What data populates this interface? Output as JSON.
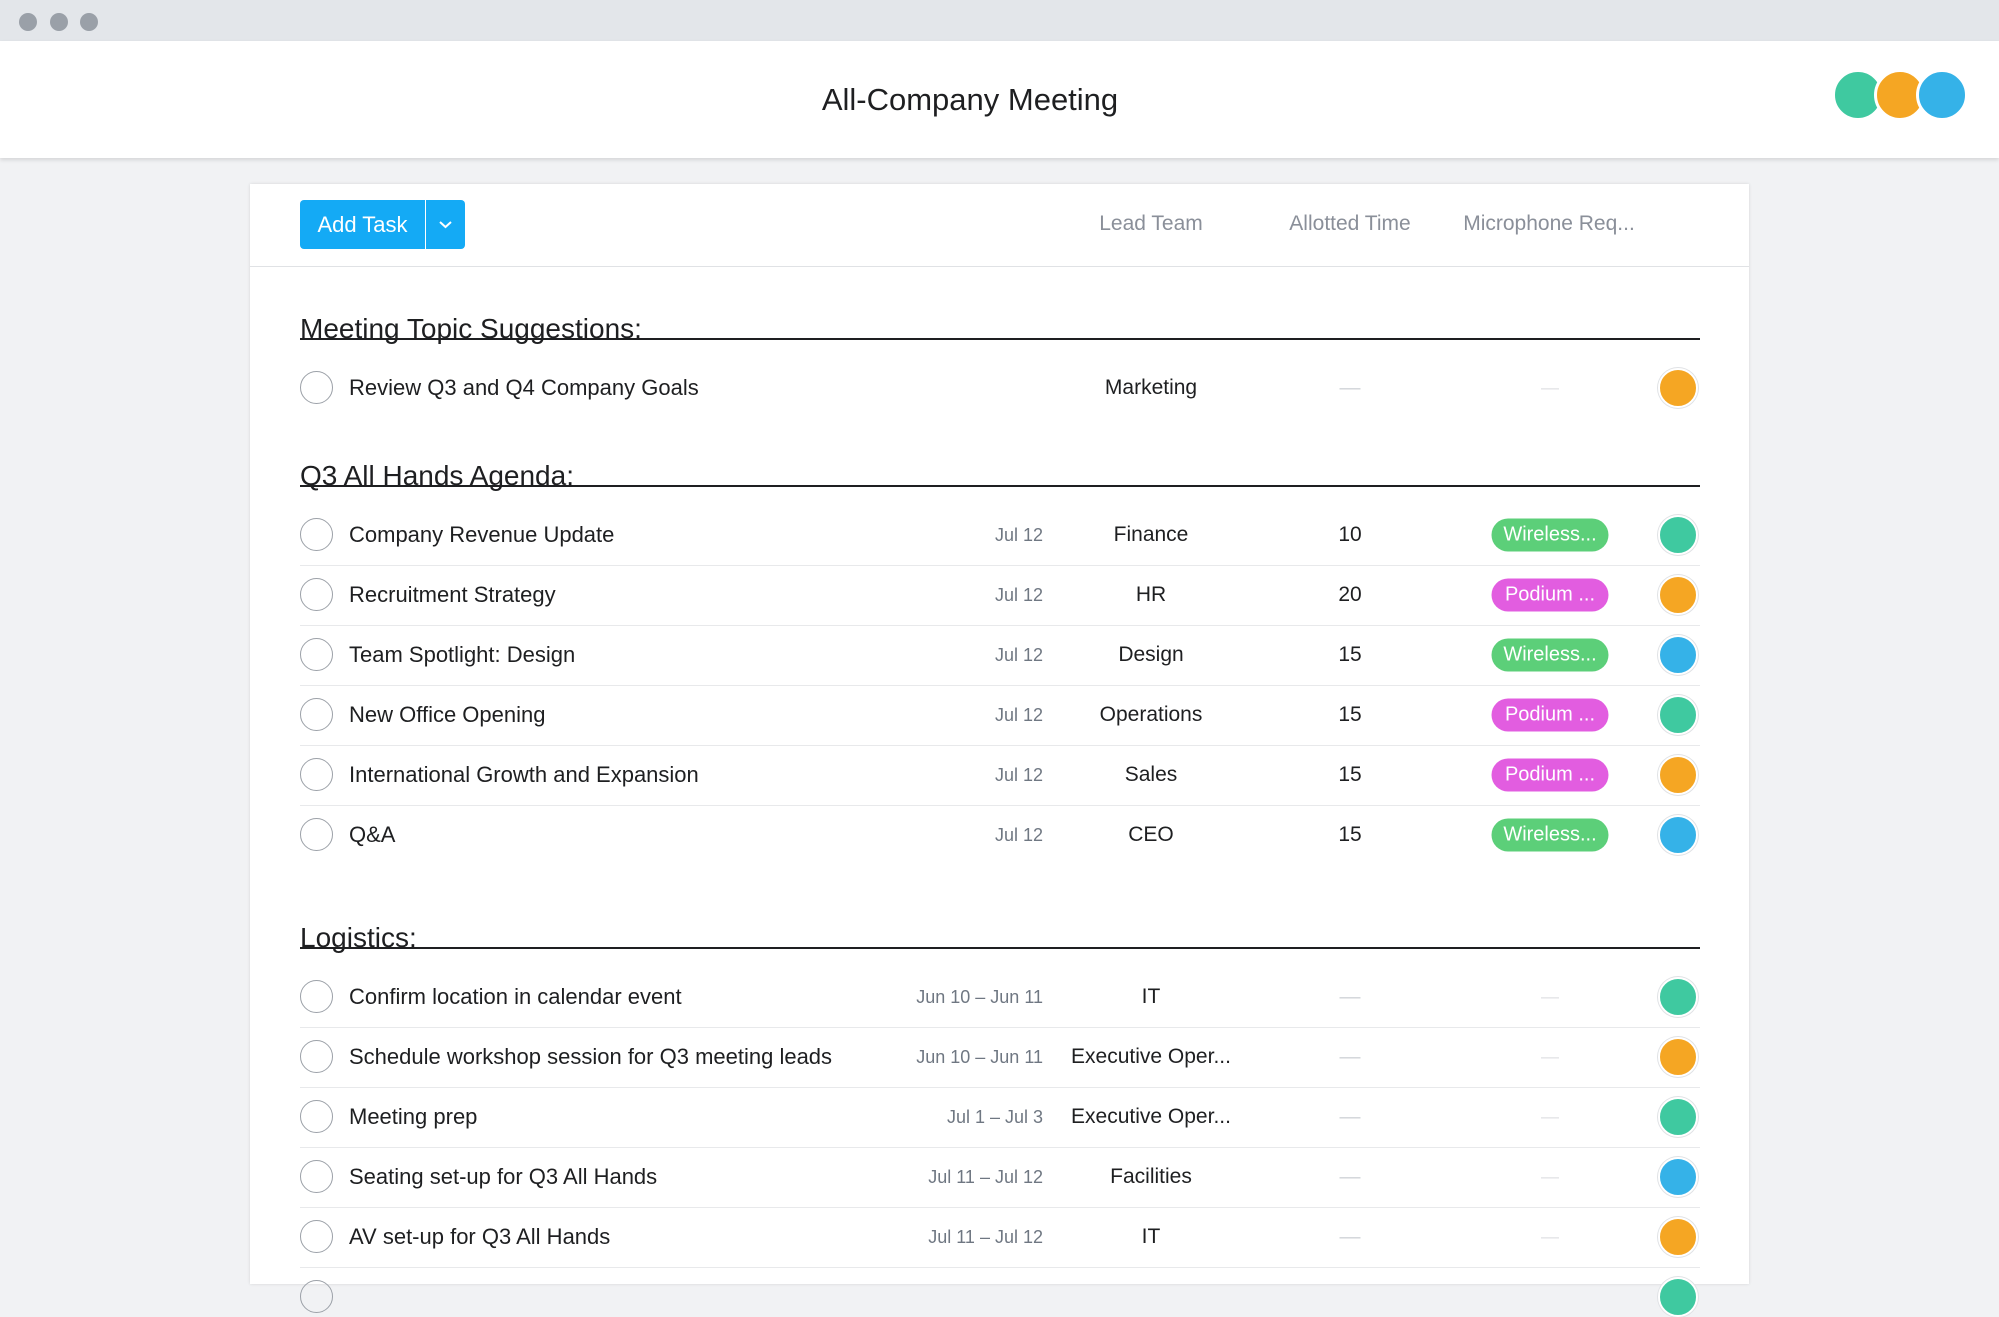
{
  "window": {
    "title": "All-Company Meeting"
  },
  "toolbar": {
    "button": "Add Task",
    "columns": [
      "Lead Team",
      "Allotted Time",
      "Microphone Req..."
    ]
  },
  "sections": [
    {
      "title": "Meeting Topic Suggestions:",
      "rows": [
        {
          "name": "Review Q3 and Q4 Company Goals",
          "team": "Marketing",
          "time": "—",
          "mic": "—",
          "avatar_color": "#f5a623"
        }
      ]
    },
    {
      "title": "Q3 All Hands Agenda:",
      "rows": [
        {
          "name": "Company Revenue Update",
          "date": "Jul 12",
          "team": "Finance",
          "time": 10,
          "mic": "Wireless...",
          "mic_color": "#5ccf79",
          "avatar_color": "#3fc9a0"
        },
        {
          "name": "Recruitment Strategy",
          "date": "Jul 12",
          "team": "HR",
          "time": 20,
          "mic": "Podium ...",
          "mic_color": "#e25de0",
          "avatar_color": "#f5a623"
        },
        {
          "name": "Team Spotlight: Design",
          "date": "Jul 12",
          "team": "Design",
          "time": 15,
          "mic": "Wireless...",
          "mic_color": "#5ccf79",
          "avatar_color": "#35b2e8"
        },
        {
          "name": "New Office Opening",
          "date": "Jul 12",
          "team": "Operations",
          "time": 15,
          "mic": "Podium ...",
          "mic_color": "#e25de0",
          "avatar_color": "#3fc9a0"
        },
        {
          "name": "International Growth and Expansion",
          "date": "Jul 12",
          "team": "Sales",
          "time": 15,
          "mic": "Podium ...",
          "mic_color": "#e25de0",
          "avatar_color": "#f5a623"
        },
        {
          "name": "Q&A",
          "date": "Jul 12",
          "team": "CEO",
          "time": 15,
          "mic": "Wireless...",
          "mic_color": "#5ccf79",
          "avatar_color": "#35b2e8"
        }
      ]
    },
    {
      "title": "Logistics:",
      "rows": [
        {
          "name": "Confirm location in calendar event",
          "date": "Jun 10 – Jun 11",
          "team": "IT",
          "time": "—",
          "mic": "—",
          "avatar_color": "#3fc9a0"
        },
        {
          "name": "Schedule workshop session for Q3 meeting leads",
          "date": "Jun 10 – Jun 11",
          "team": "Executive Oper...",
          "time": "—",
          "mic": "—",
          "avatar_color": "#f5a623"
        },
        {
          "name": "Meeting prep",
          "date": "Jul 1 – Jul 3",
          "team": "Executive Oper...",
          "time": "—",
          "mic": "—",
          "avatar_color": "#3fc9a0"
        },
        {
          "name": "Seating set-up for Q3 All Hands",
          "date": "Jul 11 – Jul 12",
          "team": "Facilities",
          "time": "—",
          "mic": "—",
          "avatar_color": "#35b2e8"
        },
        {
          "name": "AV set-up for Q3 All Hands",
          "date": "Jul 11 – Jul 12",
          "team": "IT",
          "time": "—",
          "mic": "—",
          "avatar_color": "#f5a623"
        },
        {
          "avatar_color": "#3fc9a0"
        }
      ]
    }
  ]
}
